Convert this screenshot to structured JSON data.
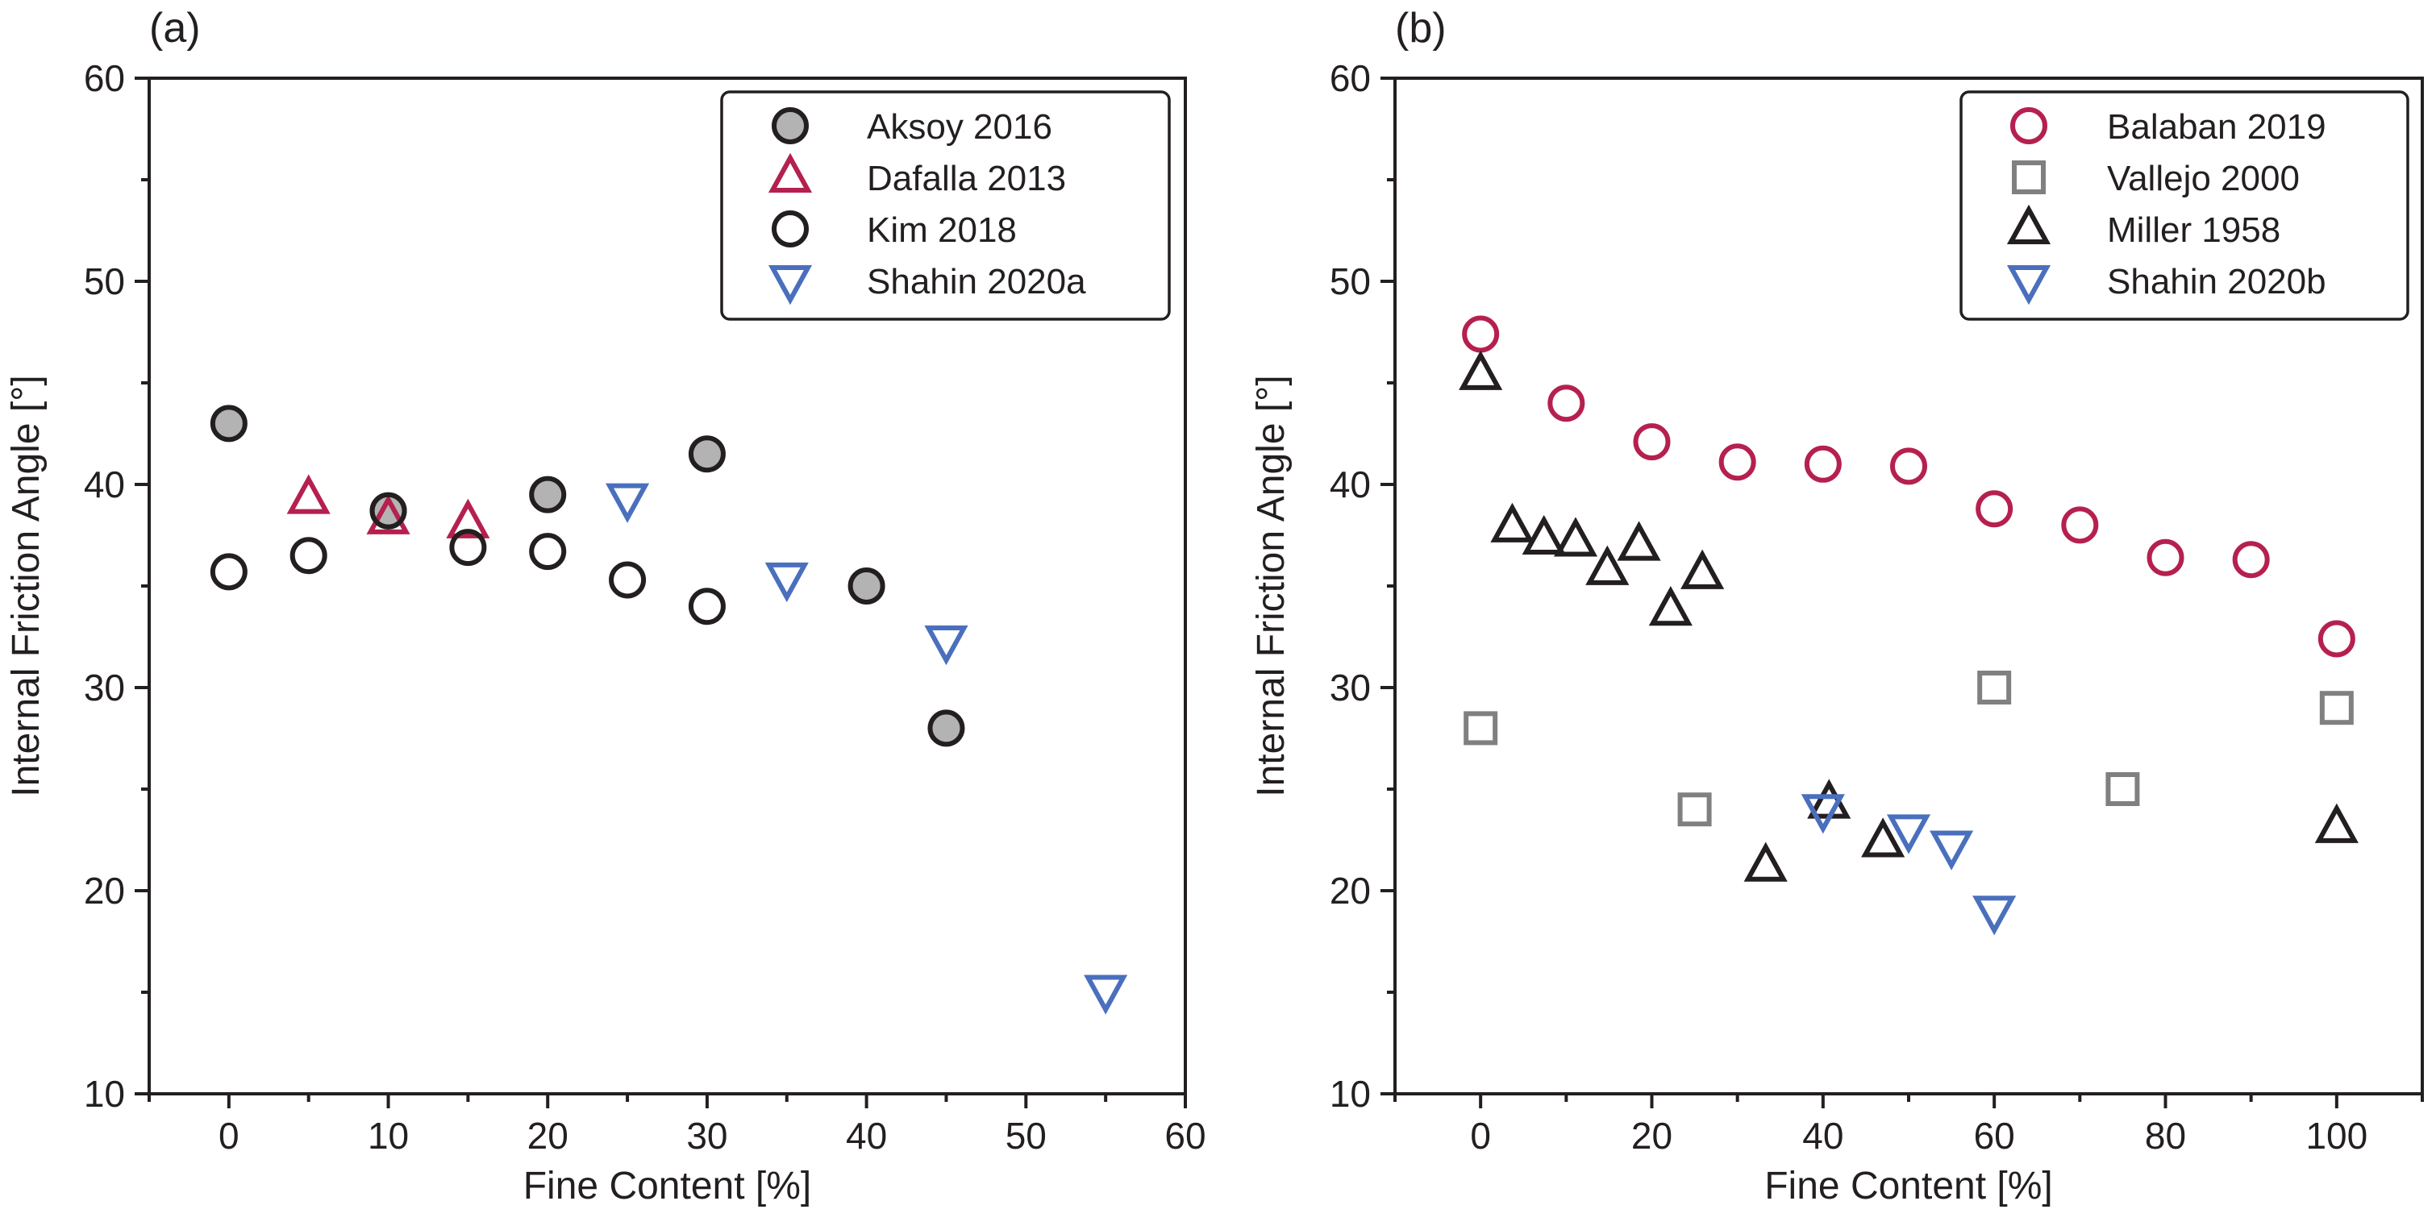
{
  "chart_data": [
    {
      "type": "scatter",
      "panel_label": "(a)",
      "xlabel": "Fine Content [%]",
      "ylabel": "Internal Friction Angle [°]",
      "xlim": [
        -5,
        60
      ],
      "ylim": [
        10,
        60
      ],
      "xticks": [
        0,
        10,
        20,
        30,
        40,
        50,
        60
      ],
      "yticks": [
        10,
        20,
        30,
        40,
        50,
        60
      ],
      "grid": false,
      "legend_position": "top-right",
      "series": [
        {
          "name": "Aksoy 2016",
          "marker": "circle-filled",
          "color": "#231f20",
          "fill": "#b3b3b3",
          "points": [
            [
              0,
              43.0
            ],
            [
              10,
              38.7
            ],
            [
              20,
              39.5
            ],
            [
              30,
              41.5
            ],
            [
              40,
              35.0
            ],
            [
              45,
              28.0
            ]
          ]
        },
        {
          "name": "Dafalla 2013",
          "marker": "triangle-up",
          "color": "#b5204f",
          "fill": "none",
          "points": [
            [
              5,
              39.3
            ],
            [
              10,
              38.3
            ],
            [
              15,
              38.1
            ]
          ]
        },
        {
          "name": "Kim 2018",
          "marker": "circle",
          "color": "#231f20",
          "fill": "none",
          "points": [
            [
              0,
              35.7
            ],
            [
              5,
              36.5
            ],
            [
              10,
              38.7
            ],
            [
              15,
              36.9
            ],
            [
              20,
              36.7
            ],
            [
              25,
              35.3
            ],
            [
              30,
              34.0
            ]
          ]
        },
        {
          "name": "Shahin 2020a",
          "marker": "triangle-down",
          "color": "#4a6fbd",
          "fill": "none",
          "points": [
            [
              25,
              39.3
            ],
            [
              35,
              35.4
            ],
            [
              45,
              32.3
            ],
            [
              55,
              15.1
            ]
          ]
        }
      ]
    },
    {
      "type": "scatter",
      "panel_label": "(b)",
      "xlabel": "Fine Content [%]",
      "ylabel": "Internal Friction Angle [°]",
      "xlim": [
        -10,
        110
      ],
      "ylim": [
        10,
        60
      ],
      "xticks": [
        0,
        20,
        40,
        60,
        80,
        100
      ],
      "yticks": [
        10,
        20,
        30,
        40,
        50,
        60
      ],
      "grid": false,
      "legend_position": "top-right",
      "series": [
        {
          "name": "Balaban 2019",
          "marker": "circle",
          "color": "#b5204f",
          "fill": "none",
          "points": [
            [
              0,
              47.4
            ],
            [
              10,
              44.0
            ],
            [
              20,
              42.1
            ],
            [
              30,
              41.1
            ],
            [
              40,
              41.0
            ],
            [
              50,
              40.9
            ],
            [
              60,
              38.8
            ],
            [
              70,
              38.0
            ],
            [
              80,
              36.4
            ],
            [
              90,
              36.3
            ],
            [
              100,
              32.4
            ]
          ]
        },
        {
          "name": "Vallejo 2000",
          "marker": "square",
          "color": "#808080",
          "fill": "none",
          "points": [
            [
              0,
              28.0
            ],
            [
              25,
              24.0
            ],
            [
              60,
              30.0
            ],
            [
              75,
              25.0
            ],
            [
              100,
              29.0
            ]
          ]
        },
        {
          "name": "Miller 1958",
          "marker": "triangle-up",
          "color": "#231f20",
          "fill": "none",
          "points": [
            [
              0,
              45.4
            ],
            [
              3.7,
              37.9
            ],
            [
              7.4,
              37.3
            ],
            [
              11.1,
              37.2
            ],
            [
              14.8,
              35.8
            ],
            [
              18.5,
              37.0
            ],
            [
              22.2,
              33.8
            ],
            [
              25.9,
              35.6
            ],
            [
              33.3,
              21.2
            ],
            [
              40.7,
              24.3
            ],
            [
              47,
              22.4
            ],
            [
              100,
              23.1
            ]
          ]
        },
        {
          "name": "Shahin 2020b",
          "marker": "triangle-down",
          "color": "#4a6fbd",
          "fill": "none",
          "points": [
            [
              40,
              24.0
            ],
            [
              50,
              23.0
            ],
            [
              55,
              22.2
            ],
            [
              60,
              19.0
            ]
          ]
        }
      ]
    }
  ]
}
